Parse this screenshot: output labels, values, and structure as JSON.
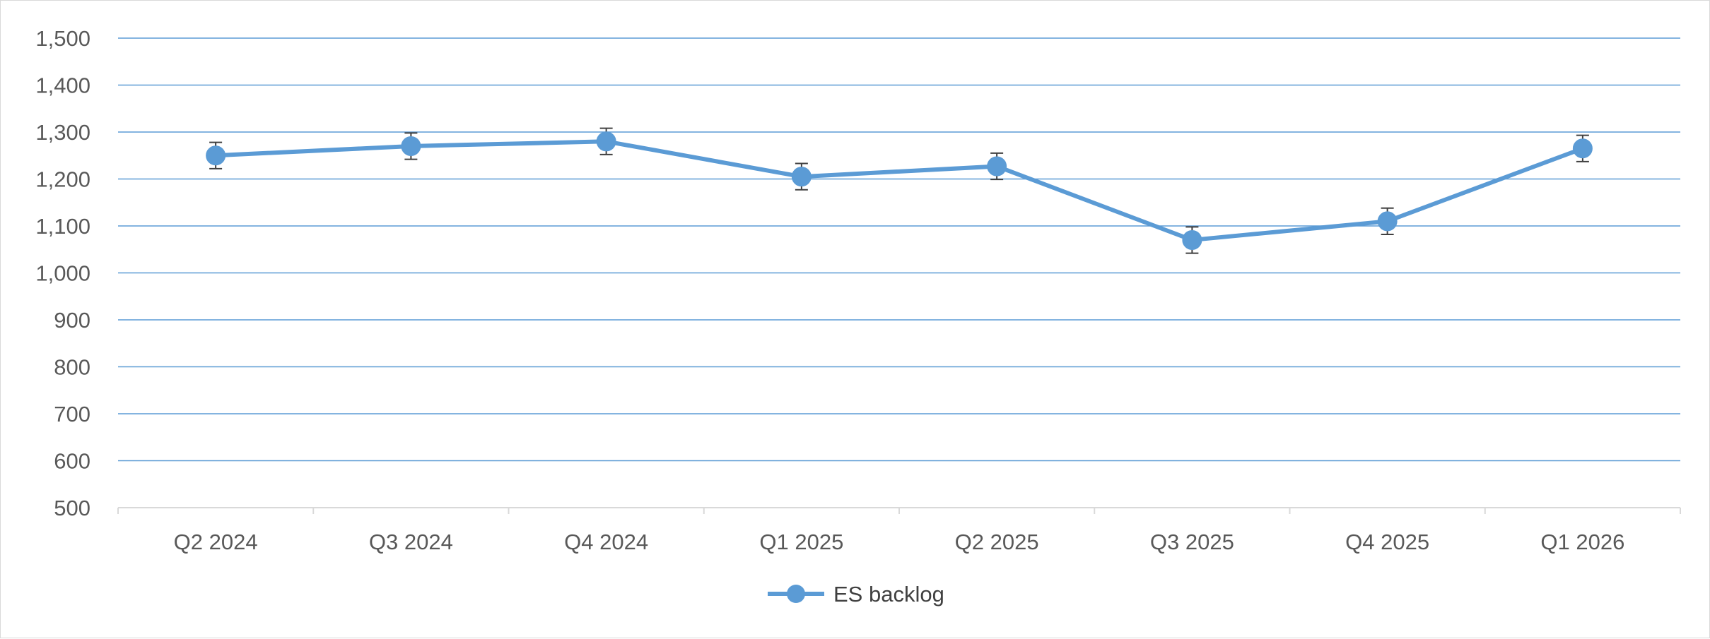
{
  "colors": {
    "series": "#5b9bd5",
    "series_marker_stroke": "#5b9bd5",
    "gridline": "#5b9bd5",
    "axis": "#d9d9d9",
    "error_bar": "#404040",
    "text": "#595959"
  },
  "chart_data": {
    "type": "line",
    "title": "",
    "xlabel": "",
    "ylabel": "",
    "categories": [
      "Q2 2024",
      "Q3 2024",
      "Q4 2024",
      "Q1 2025",
      "Q2 2025",
      "Q3 2025",
      "Q4 2025",
      "Q1 2026"
    ],
    "series": [
      {
        "name": "ES backlog",
        "values": [
          1250,
          1270,
          1280,
          1205,
          1227,
          1070,
          1110,
          1265
        ],
        "error_plus": [
          28,
          28,
          28,
          28,
          28,
          28,
          28,
          28
        ],
        "error_minus": [
          28,
          28,
          28,
          28,
          28,
          28,
          28,
          28
        ]
      }
    ],
    "ylim": [
      500,
      1500
    ],
    "yticks": [
      500,
      600,
      700,
      800,
      900,
      1000,
      1100,
      1200,
      1300,
      1400,
      1500
    ],
    "ytick_labels": [
      "500",
      "600",
      "700",
      "800",
      "900",
      "1,000",
      "1,100",
      "1,200",
      "1,300",
      "1,400",
      "1,500"
    ],
    "grid": true,
    "legend": "bottom-center",
    "markers": "circle",
    "error_bars": true
  }
}
